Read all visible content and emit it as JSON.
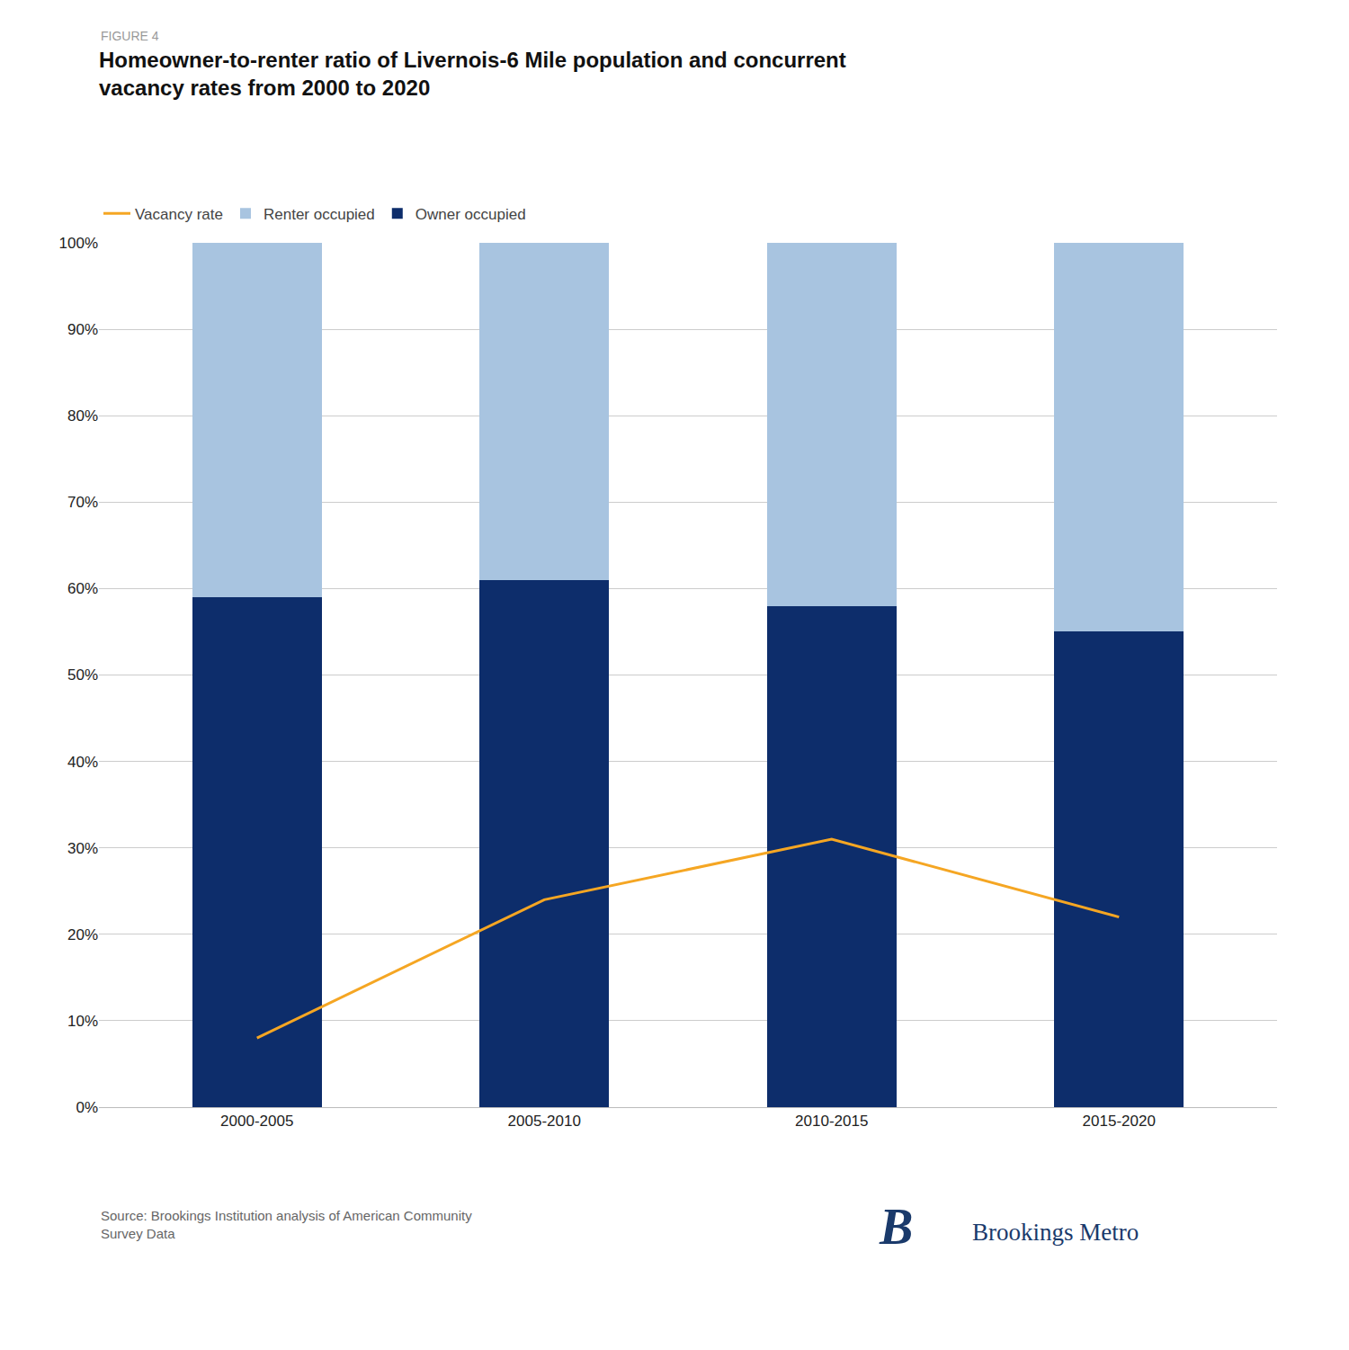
{
  "chart_data": {
    "type": "bar",
    "stacked": true,
    "subtitle": "FIGURE 4",
    "title": "Homeowner-to-renter ratio of Livernois-6 Mile population and concurrent\nvacancy rates from 2000 to 2020",
    "categories": [
      "2000-2005",
      "2005-2010",
      "2010-2015",
      "2015-2020"
    ],
    "series": [
      {
        "name": "Owner occupied",
        "type": "bar",
        "color": "#0d2d6b",
        "values": [
          59,
          61,
          58,
          55
        ]
      },
      {
        "name": "Renter occupied",
        "type": "bar",
        "color": "#a8c4e0",
        "values": [
          41,
          39,
          42,
          45
        ]
      },
      {
        "name": "Vacancy rate",
        "type": "line",
        "color": "#f5a623",
        "values": [
          8,
          24,
          31,
          22
        ]
      }
    ],
    "ylim": [
      0,
      100
    ],
    "yticks": [
      {
        "value": 0,
        "label": "0%"
      },
      {
        "value": 10,
        "label": "10%"
      },
      {
        "value": 20,
        "label": "20%"
      },
      {
        "value": 30,
        "label": "30%"
      },
      {
        "value": 40,
        "label": "40%"
      },
      {
        "value": 50,
        "label": "50%"
      },
      {
        "value": 60,
        "label": "60%"
      },
      {
        "value": 70,
        "label": "70%"
      },
      {
        "value": 80,
        "label": "80%"
      },
      {
        "value": 90,
        "label": "90%"
      },
      {
        "value": 100,
        "label": "100%"
      }
    ],
    "grid": true,
    "legend": "top left",
    "annotations": [
      "Source: Brookings Institution analysis of American Community\nSurvey Data",
      "B",
      "Brookings Metro"
    ]
  }
}
